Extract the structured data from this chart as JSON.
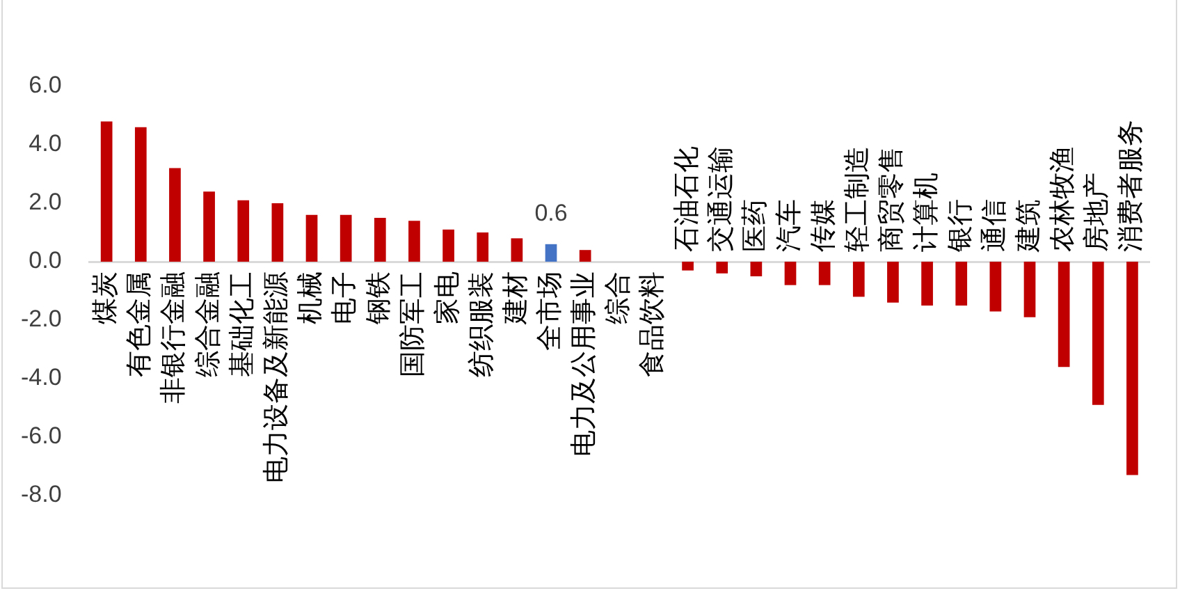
{
  "chart_data": {
    "type": "bar",
    "categories": [
      "煤炭",
      "有色金属",
      "非银行金融",
      "综合金融",
      "基础化工",
      "电力设备及新能源",
      "机械",
      "电子",
      "钢铁",
      "国防军工",
      "家电",
      "纺织服装",
      "建材",
      "全市场",
      "电力及公用事业",
      "综合",
      "食品饮料",
      "石油石化",
      "交通运输",
      "医药",
      "汽车",
      "传媒",
      "轻工制造",
      "商贸零售",
      "计算机",
      "银行",
      "通信",
      "建筑",
      "农林牧渔",
      "房地产",
      "消费者服务"
    ],
    "values": [
      4.8,
      4.6,
      3.2,
      2.4,
      2.1,
      2.0,
      1.6,
      1.6,
      1.5,
      1.4,
      1.1,
      1.0,
      0.8,
      0.6,
      0.4,
      0,
      0,
      -0.3,
      -0.4,
      -0.5,
      -0.8,
      -0.8,
      -1.2,
      -1.4,
      -1.5,
      -1.5,
      -1.7,
      -1.9,
      -3.6,
      -4.9,
      -7.3
    ],
    "colors": [
      "#c00000",
      "#c00000",
      "#c00000",
      "#c00000",
      "#c00000",
      "#c00000",
      "#c00000",
      "#c00000",
      "#c00000",
      "#c00000",
      "#c00000",
      "#c00000",
      "#c00000",
      "#4472c4",
      "#c00000",
      "#c00000",
      "#c00000",
      "#c00000",
      "#c00000",
      "#c00000",
      "#c00000",
      "#c00000",
      "#c00000",
      "#c00000",
      "#c00000",
      "#c00000",
      "#c00000",
      "#c00000",
      "#c00000",
      "#c00000",
      "#c00000"
    ],
    "value_labels": [
      null,
      null,
      null,
      null,
      null,
      null,
      null,
      null,
      null,
      null,
      null,
      null,
      null,
      "0.6",
      null,
      null,
      null,
      null,
      null,
      null,
      null,
      null,
      null,
      null,
      null,
      null,
      null,
      null,
      null,
      null,
      null
    ],
    "ylim": [
      -8,
      6
    ],
    "yticks": [
      {
        "value": -8,
        "label": "-8.0"
      },
      {
        "value": -6,
        "label": "-6.0"
      },
      {
        "value": -4,
        "label": "-4.0"
      },
      {
        "value": -2,
        "label": "-2.0"
      },
      {
        "value": 0,
        "label": "0.0"
      },
      {
        "value": 2,
        "label": "2.0"
      },
      {
        "value": 4,
        "label": "4.0"
      },
      {
        "value": 6,
        "label": "6.0"
      }
    ],
    "grid": false,
    "legend": false
  }
}
